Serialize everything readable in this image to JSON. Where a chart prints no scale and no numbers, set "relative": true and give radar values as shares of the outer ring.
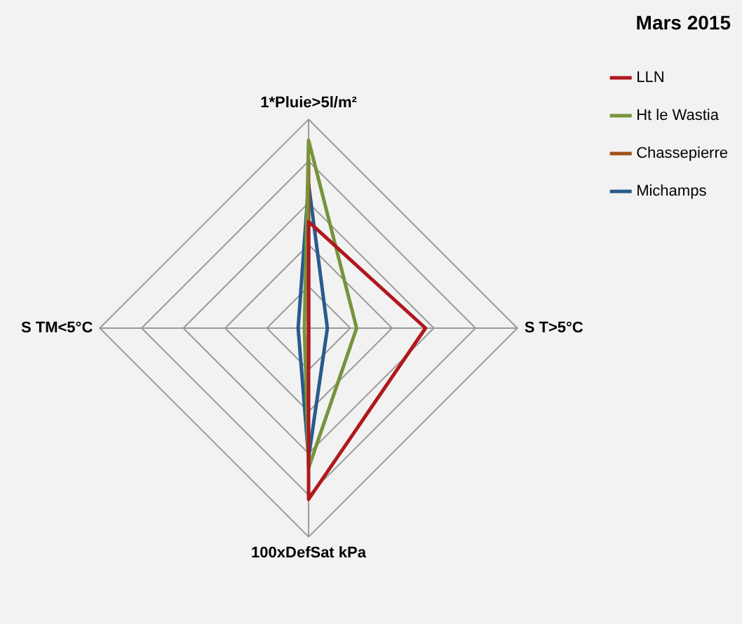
{
  "chart_data": {
    "type": "radar",
    "title": "Mars 2015",
    "relative": true,
    "legend": "top right",
    "marker": "none",
    "categories": [
      "1*Pluie>5l/m²",
      "S T>5°C",
      "100xDefSat kPa",
      "S TM<5°C"
    ],
    "series": [
      {
        "name": "LLN",
        "color": "#b0171f",
        "values": [
          0.51,
          0.56,
          0.82,
          0
        ]
      },
      {
        "name": "Ht le Wastia",
        "color": "#77933c",
        "values": [
          0.9,
          0.23,
          0.67,
          0.02
        ]
      },
      {
        "name": "Chassepierre",
        "color": "#a0501a",
        "values": [
          0.81,
          0,
          0.19,
          0
        ]
      },
      {
        "name": "Michamps",
        "color": "#2a5a8c",
        "values": [
          0.69,
          0.09,
          0.62,
          0.05
        ]
      }
    ]
  }
}
